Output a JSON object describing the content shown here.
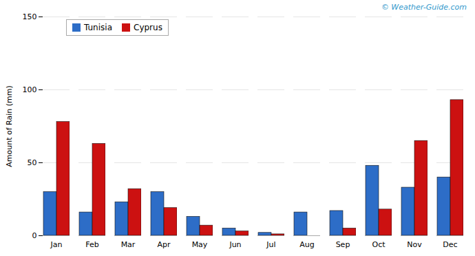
{
  "chart_data": {
    "type": "bar",
    "categories": [
      "Jan",
      "Feb",
      "Mar",
      "Apr",
      "May",
      "Jun",
      "Jul",
      "Aug",
      "Sep",
      "Oct",
      "Nov",
      "Dec"
    ],
    "series": [
      {
        "name": "Tunisia",
        "color": "#2d6dc7",
        "values": [
          30,
          16,
          23,
          30,
          13,
          5,
          2,
          16,
          17,
          48,
          33,
          40
        ]
      },
      {
        "name": "Cyprus",
        "color": "#cc1111",
        "values": [
          78,
          63,
          32,
          19,
          7,
          3,
          1,
          0,
          5,
          18,
          65,
          93
        ]
      }
    ],
    "ylabel": "Amount of Rain (mm)",
    "ylim": [
      0,
      150
    ],
    "yticks": [
      0,
      50,
      100,
      150
    ],
    "grid": true,
    "legend": "upper left",
    "annotations": [
      "© Weather-Guide.com"
    ]
  }
}
